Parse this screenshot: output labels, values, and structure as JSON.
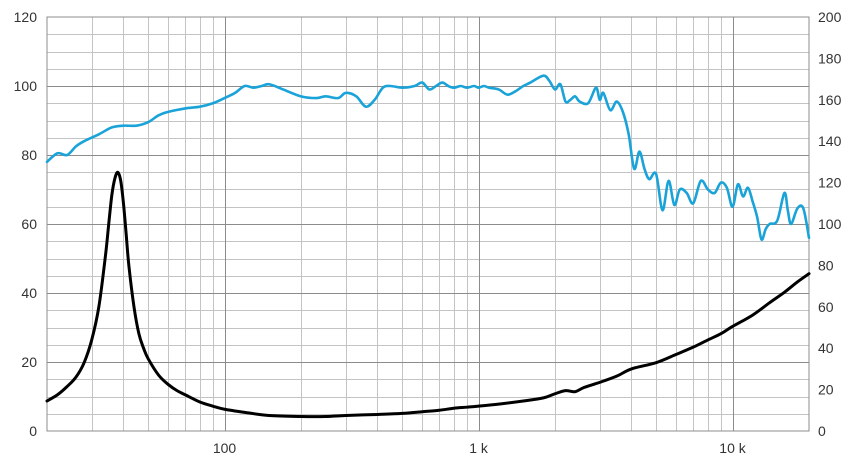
{
  "chart_data": {
    "type": "line",
    "x_scale": "log",
    "xlim": [
      20,
      20000
    ],
    "ylim_left": [
      0,
      120
    ],
    "ylim_right": [
      0,
      200
    ],
    "grid": true,
    "x_ticks": [
      {
        "value": 100,
        "label": "100"
      },
      {
        "value": 1000,
        "label": "1 k"
      },
      {
        "value": 10000,
        "label": "10 k"
      }
    ],
    "y_left_ticks": [
      {
        "value": 0,
        "label": "0"
      },
      {
        "value": 20,
        "label": "20"
      },
      {
        "value": 40,
        "label": "40"
      },
      {
        "value": 60,
        "label": "60"
      },
      {
        "value": 80,
        "label": "80"
      },
      {
        "value": 100,
        "label": "100"
      },
      {
        "value": 120,
        "label": "120"
      }
    ],
    "y_right_ticks": [
      {
        "value": 0,
        "label": "0"
      },
      {
        "value": 20,
        "label": "20"
      },
      {
        "value": 40,
        "label": "40"
      },
      {
        "value": 60,
        "label": "60"
      },
      {
        "value": 80,
        "label": "80"
      },
      {
        "value": 100,
        "label": "100"
      },
      {
        "value": 120,
        "label": "120"
      },
      {
        "value": 140,
        "label": "140"
      },
      {
        "value": 160,
        "label": "160"
      },
      {
        "value": 180,
        "label": "180"
      },
      {
        "value": 200,
        "label": "200"
      }
    ],
    "series": [
      {
        "color": "#1aa3d9",
        "axis": "left",
        "x": [
          20,
          22,
          24,
          26,
          28,
          32,
          36,
          40,
          45,
          50,
          55,
          60,
          70,
          80,
          90,
          100,
          110,
          120,
          130,
          140,
          150,
          170,
          200,
          230,
          250,
          280,
          300,
          330,
          360,
          390,
          420,
          450,
          500,
          560,
          600,
          640,
          680,
          720,
          760,
          800,
          850,
          900,
          960,
          1000,
          1050,
          1100,
          1200,
          1300,
          1400,
          1500,
          1600,
          1800,
          1900,
          2000,
          2100,
          2200,
          2300,
          2400,
          2500,
          2700,
          2900,
          3000,
          3100,
          3300,
          3500,
          3700,
          3900,
          4100,
          4300,
          4500,
          4700,
          5000,
          5300,
          5600,
          5900,
          6200,
          6600,
          7000,
          7500,
          8000,
          8500,
          9000,
          9500,
          10000,
          10500,
          11000,
          11500,
          12000,
          12500,
          13000,
          13500,
          14000,
          15000,
          16000,
          16500,
          17000,
          18000,
          19000,
          20000
        ],
        "y": [
          78,
          80.5,
          80,
          82.5,
          84,
          86,
          88,
          88.5,
          88.5,
          89.5,
          91.5,
          92.5,
          93.5,
          94,
          95,
          96.5,
          98,
          100,
          99.5,
          100,
          100.5,
          99,
          97,
          96.5,
          97,
          96.5,
          98,
          97,
          94,
          96,
          99.5,
          100,
          99.5,
          100,
          101,
          99,
          100,
          101,
          100,
          99.5,
          100,
          99.5,
          100,
          99.5,
          100,
          99.5,
          99,
          97.5,
          98.5,
          100,
          101,
          103,
          101.5,
          99,
          100.5,
          95.5,
          96,
          97,
          95.5,
          95,
          99.5,
          96,
          98,
          93,
          95.5,
          92.5,
          86,
          76,
          81,
          76,
          73,
          74.5,
          64,
          72.5,
          65.5,
          70,
          69,
          66,
          72.5,
          70,
          69,
          72,
          70.5,
          65,
          71.5,
          68,
          70.5,
          66.5,
          62,
          55.5,
          58.5,
          60,
          61,
          69,
          64,
          60,
          64.5,
          64.5,
          56
        ]
      },
      {
        "color": "#000000",
        "axis": "right",
        "x": [
          20,
          22,
          24,
          26,
          28,
          30,
          32,
          34,
          35,
          36,
          37,
          38,
          39,
          40,
          41,
          42,
          44,
          46,
          48,
          50,
          55,
          60,
          65,
          70,
          80,
          90,
          100,
          120,
          150,
          200,
          250,
          300,
          400,
          500,
          600,
          700,
          800,
          900,
          1000,
          1200,
          1500,
          1800,
          2000,
          2200,
          2400,
          2600,
          3000,
          3500,
          4000,
          5000,
          6000,
          7000,
          8000,
          9000,
          10000,
          12000,
          14000,
          16000,
          18000,
          20000
        ],
        "y": [
          14.5,
          17.5,
          21.5,
          26,
          33,
          44,
          60,
          85,
          100,
          114,
          122,
          125,
          121,
          110,
          95,
          80,
          60,
          47,
          40,
          35,
          27,
          22.5,
          19.5,
          17.5,
          14,
          12,
          10.5,
          9,
          7.5,
          7,
          7,
          7.5,
          8,
          8.5,
          9.3,
          10,
          11,
          11.5,
          12,
          13,
          14.5,
          16,
          18,
          19.5,
          19,
          21,
          23.5,
          26.5,
          30,
          33,
          37,
          40.5,
          44,
          47,
          50.5,
          56,
          62,
          67,
          72,
          76
        ]
      }
    ]
  }
}
